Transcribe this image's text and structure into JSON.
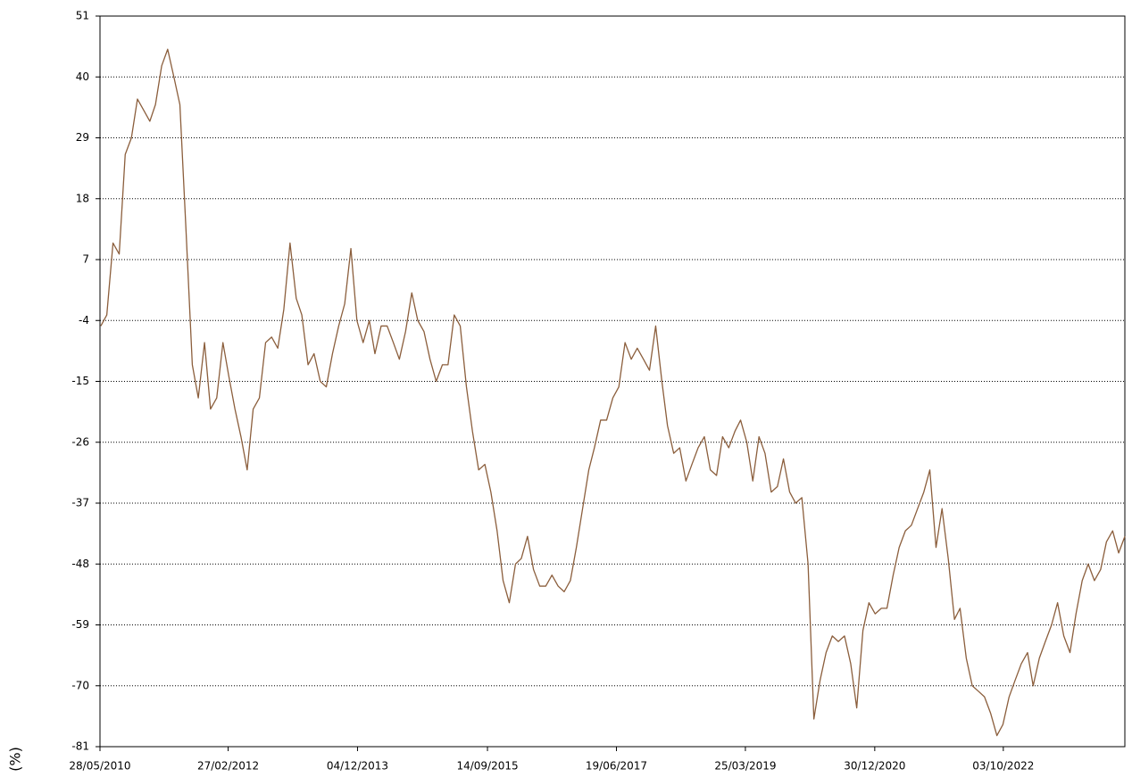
{
  "chart_data": {
    "type": "line",
    "y_label": "(%)",
    "color": "#8b5e3c",
    "grid": true,
    "xlim": [
      "2010-05-28",
      "2024-06-01"
    ],
    "ylim": [
      -81,
      51
    ],
    "yticks": [
      51,
      40,
      29,
      18,
      7,
      -4,
      -15,
      -26,
      -37,
      -48,
      -59,
      -70,
      -81
    ],
    "xticks": [
      {
        "value": "2010-05-28",
        "label": "28/05/2010"
      },
      {
        "value": "2012-02-27",
        "label": "27/02/2012"
      },
      {
        "value": "2013-12-04",
        "label": "04/12/2013"
      },
      {
        "value": "2015-09-14",
        "label": "14/09/2015"
      },
      {
        "value": "2017-06-19",
        "label": "19/06/2017"
      },
      {
        "value": "2019-03-25",
        "label": "25/03/2019"
      },
      {
        "value": "2020-12-30",
        "label": "30/12/2020"
      },
      {
        "value": "2022-10-03",
        "label": "03/10/2022"
      }
    ],
    "x": [
      "2010-06-01",
      "2010-07-01",
      "2010-08-01",
      "2010-09-01",
      "2010-10-01",
      "2010-11-01",
      "2010-12-01",
      "2011-01-01",
      "2011-02-01",
      "2011-03-01",
      "2011-04-01",
      "2011-05-01",
      "2011-06-01",
      "2011-07-01",
      "2011-08-01",
      "2011-09-01",
      "2011-10-01",
      "2011-11-01",
      "2011-12-01",
      "2012-01-01",
      "2012-02-01",
      "2012-03-01",
      "2012-04-01",
      "2012-05-01",
      "2012-06-01",
      "2012-07-01",
      "2012-08-01",
      "2012-09-01",
      "2012-10-01",
      "2012-11-01",
      "2012-12-01",
      "2013-01-01",
      "2013-02-01",
      "2013-03-01",
      "2013-04-01",
      "2013-05-01",
      "2013-06-01",
      "2013-07-01",
      "2013-08-01",
      "2013-09-01",
      "2013-10-01",
      "2013-11-01",
      "2013-12-01",
      "2014-01-01",
      "2014-02-01",
      "2014-03-01",
      "2014-04-01",
      "2014-05-01",
      "2014-06-01",
      "2014-07-01",
      "2014-08-01",
      "2014-09-01",
      "2014-10-01",
      "2014-11-01",
      "2014-12-01",
      "2015-01-01",
      "2015-02-01",
      "2015-03-01",
      "2015-04-01",
      "2015-05-01",
      "2015-06-01",
      "2015-07-01",
      "2015-08-01",
      "2015-09-01",
      "2015-10-01",
      "2015-11-01",
      "2015-12-01",
      "2016-01-01",
      "2016-02-01",
      "2016-03-01",
      "2016-04-01",
      "2016-05-01",
      "2016-06-01",
      "2016-07-01",
      "2016-08-01",
      "2016-09-01",
      "2016-10-01",
      "2016-11-01",
      "2016-12-01",
      "2017-01-01",
      "2017-02-01",
      "2017-03-01",
      "2017-04-01",
      "2017-05-01",
      "2017-06-01",
      "2017-07-01",
      "2017-08-01",
      "2017-09-01",
      "2017-10-01",
      "2017-11-01",
      "2017-12-01",
      "2018-01-01",
      "2018-02-01",
      "2018-03-01",
      "2018-04-01",
      "2018-05-01",
      "2018-06-01",
      "2018-07-01",
      "2018-08-01",
      "2018-09-01",
      "2018-10-01",
      "2018-11-01",
      "2018-12-01",
      "2019-01-01",
      "2019-02-01",
      "2019-03-01",
      "2019-04-01",
      "2019-05-01",
      "2019-06-01",
      "2019-07-01",
      "2019-08-01",
      "2019-09-01",
      "2019-10-01",
      "2019-11-01",
      "2019-12-01",
      "2020-01-01",
      "2020-02-01",
      "2020-03-01",
      "2020-04-01",
      "2020-05-01",
      "2020-06-01",
      "2020-07-01",
      "2020-08-01",
      "2020-09-01",
      "2020-10-01",
      "2020-11-01",
      "2020-12-01",
      "2021-01-01",
      "2021-02-01",
      "2021-03-01",
      "2021-04-01",
      "2021-05-01",
      "2021-06-01",
      "2021-07-01",
      "2021-08-01",
      "2021-09-01",
      "2021-10-01",
      "2021-11-01",
      "2021-12-01",
      "2022-01-01",
      "2022-02-01",
      "2022-03-01",
      "2022-04-01",
      "2022-05-01",
      "2022-06-01",
      "2022-07-01",
      "2022-08-01",
      "2022-09-01",
      "2022-10-01",
      "2022-11-01",
      "2022-12-01",
      "2023-01-01",
      "2023-02-01",
      "2023-03-01",
      "2023-04-01",
      "2023-05-01",
      "2023-06-01",
      "2023-07-01",
      "2023-08-01",
      "2023-09-01",
      "2023-10-01",
      "2023-11-01",
      "2023-12-01",
      "2024-01-01",
      "2024-02-01",
      "2024-03-01",
      "2024-04-01",
      "2024-05-01",
      "2024-06-01"
    ],
    "values": [
      -5,
      -3,
      10,
      8,
      26,
      29,
      36,
      34,
      32,
      35,
      42,
      45,
      40,
      35,
      12,
      -12,
      -18,
      -8,
      -20,
      -18,
      -8,
      -14,
      -20,
      -25,
      -31,
      -20,
      -18,
      -8,
      -7,
      -9,
      -2,
      10,
      0,
      -3,
      -12,
      -10,
      -15,
      -16,
      -10,
      -5,
      -1,
      9,
      -4,
      -8,
      -4,
      -10,
      -5,
      -5,
      -8,
      -11,
      -6,
      1,
      -4,
      -6,
      -11,
      -15,
      -12,
      -12,
      -3,
      -5,
      -16,
      -24,
      -31,
      -30,
      -35,
      -42,
      -51,
      -55,
      -48,
      -47,
      -43,
      -49,
      -52,
      -52,
      -50,
      -52,
      -53,
      -51,
      -45,
      -38,
      -31,
      -27,
      -22,
      -22,
      -18,
      -16,
      -8,
      -11,
      -9,
      -11,
      -13,
      -5,
      -15,
      -23,
      -28,
      -27,
      -33,
      -30,
      -27,
      -25,
      -31,
      -32,
      -25,
      -27,
      -24,
      -22,
      -26,
      -33,
      -25,
      -28,
      -35,
      -34,
      -29,
      -35,
      -37,
      -36,
      -48,
      -76,
      -69,
      -64,
      -61,
      -62,
      -61,
      -66,
      -74,
      -60,
      -55,
      -57,
      -56,
      -56,
      -50,
      -45,
      -42,
      -41,
      -38,
      -35,
      -31,
      -45,
      -38,
      -47,
      -58,
      -56,
      -65,
      -70,
      -71,
      -72,
      -75,
      -79,
      -77,
      -72,
      -69,
      -66,
      -64,
      -70,
      -65,
      -62,
      -59,
      -55,
      -61,
      -64,
      -57,
      -51,
      -48,
      -51,
      -49,
      -44,
      -42,
      -46,
      -43
    ]
  }
}
